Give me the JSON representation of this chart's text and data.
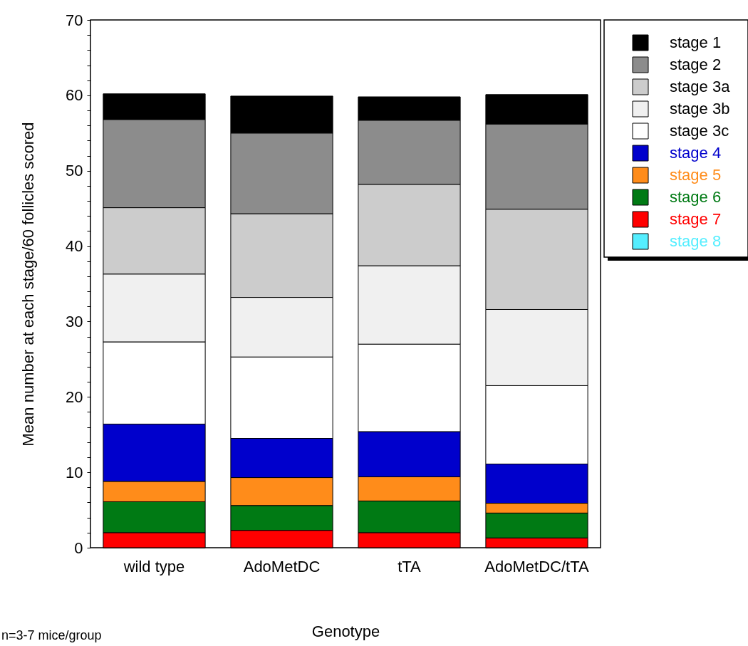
{
  "chart_data": {
    "type": "bar",
    "stacked": true,
    "categories": [
      "wild type",
      "AdoMetDC",
      "tTA",
      "AdoMetDC/tTA"
    ],
    "xlabel": "Genotype",
    "ylabel": "Mean number at each stage/60 follicles scored",
    "ylim": [
      0,
      70
    ],
    "yticks": [
      0,
      {
        "value": 2,
        "label": null
      },
      {
        "value": 4,
        "label": null
      },
      {
        "value": 6,
        "label": null
      },
      {
        "value": 8,
        "label": null
      },
      10,
      {
        "value": 12,
        "label": null
      },
      {
        "value": 14,
        "label": null
      },
      {
        "value": 16,
        "label": null
      },
      {
        "value": 18,
        "label": null
      },
      20,
      {
        "value": 22,
        "label": null
      },
      {
        "value": 24,
        "label": null
      },
      {
        "value": 26,
        "label": null
      },
      {
        "value": 28,
        "label": null
      },
      30,
      {
        "value": 32,
        "label": null
      },
      {
        "value": 34,
        "label": null
      },
      {
        "value": 36,
        "label": null
      },
      {
        "value": 38,
        "label": null
      },
      40,
      {
        "value": 42,
        "label": null
      },
      {
        "value": 44,
        "label": null
      },
      {
        "value": 46,
        "label": null
      },
      {
        "value": 48,
        "label": null
      },
      50,
      {
        "value": 52,
        "label": null
      },
      {
        "value": 54,
        "label": null
      },
      {
        "value": 56,
        "label": null
      },
      {
        "value": 58,
        "label": null
      },
      60,
      {
        "value": 62,
        "label": null
      },
      {
        "value": 64,
        "label": null
      },
      {
        "value": 66,
        "label": null
      },
      {
        "value": 68,
        "label": null
      },
      70
    ],
    "legend": "top right",
    "grid": false,
    "annotations": [
      "n=3-7 mice/group"
    ],
    "series": [
      {
        "name": "stage 8",
        "color": "#55eeff",
        "values": [
          0,
          0,
          0,
          0
        ]
      },
      {
        "name": "stage 7",
        "color": "#ff0000",
        "values": [
          2.0,
          2.3,
          2.0,
          1.3
        ]
      },
      {
        "name": "stage 6",
        "color": "#007a14",
        "values": [
          4.1,
          3.3,
          4.2,
          3.3
        ]
      },
      {
        "name": "stage 5",
        "color": "#ff8c1a",
        "values": [
          2.7,
          3.7,
          3.2,
          1.3
        ]
      },
      {
        "name": "stage 4",
        "color": "#0000cc",
        "values": [
          7.6,
          5.2,
          6.0,
          5.2
        ]
      },
      {
        "name": "stage 3c",
        "color": "#ffffff",
        "values": [
          10.9,
          10.8,
          11.6,
          10.4
        ]
      },
      {
        "name": "stage 3b",
        "color": "#f0f0f0",
        "values": [
          9.0,
          7.9,
          10.4,
          10.1
        ]
      },
      {
        "name": "stage 3a",
        "color": "#cccccc",
        "values": [
          8.8,
          11.1,
          10.8,
          13.3
        ]
      },
      {
        "name": "stage 2",
        "color": "#8c8c8c",
        "values": [
          11.7,
          10.7,
          8.5,
          11.3
        ]
      },
      {
        "name": "stage 1",
        "color": "#000000",
        "values": [
          3.4,
          4.9,
          3.1,
          3.9
        ]
      }
    ]
  }
}
